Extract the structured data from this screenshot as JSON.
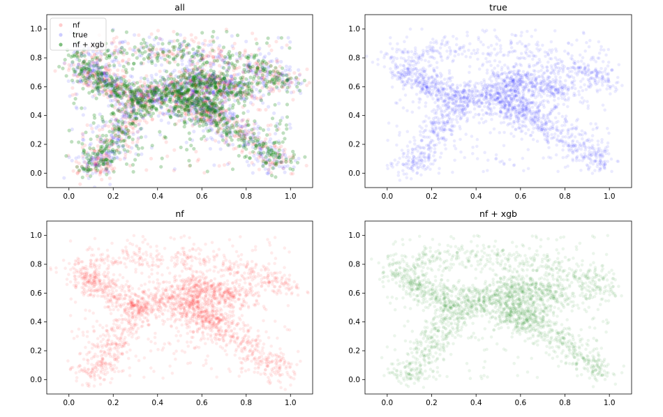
{
  "chart_data": [
    {
      "type": "scatter",
      "title": "all",
      "xlim": [
        -0.1,
        1.1
      ],
      "ylim": [
        -0.1,
        1.1
      ],
      "xticks": [
        "0.0",
        "0.2",
        "0.4",
        "0.6",
        "0.8",
        "1.0"
      ],
      "yticks": [
        "0.0",
        "0.2",
        "0.4",
        "0.6",
        "0.8",
        "1.0"
      ],
      "legend": {
        "placement": "top-left",
        "entries": [
          "nf",
          "true",
          "nf + xgb"
        ]
      },
      "series": [
        {
          "name": "nf",
          "color": "#ff0000",
          "marker": "circle",
          "alpha": 0.1
        },
        {
          "name": "true",
          "color": "#0000ff",
          "marker": "circle",
          "alpha": 0.1
        },
        {
          "name": "nf + xgb",
          "color": "#008000",
          "marker": "circle",
          "alpha": 0.25
        }
      ]
    },
    {
      "type": "scatter",
      "title": "true",
      "xlim": [
        -0.1,
        1.1
      ],
      "ylim": [
        -0.1,
        1.1
      ],
      "xticks": [
        "0.0",
        "0.2",
        "0.4",
        "0.6",
        "0.8",
        "1.0"
      ],
      "yticks": [
        "0.0",
        "0.2",
        "0.4",
        "0.6",
        "0.8",
        "1.0"
      ],
      "series": [
        {
          "color": "#0000ff",
          "marker": "circle",
          "alpha": 0.08
        }
      ]
    },
    {
      "type": "scatter",
      "title": "nf",
      "xlim": [
        -0.1,
        1.1
      ],
      "ylim": [
        -0.1,
        1.1
      ],
      "xticks": [
        "0.0",
        "0.2",
        "0.4",
        "0.6",
        "0.8",
        "1.0"
      ],
      "yticks": [
        "0.0",
        "0.2",
        "0.4",
        "0.6",
        "0.8",
        "1.0"
      ],
      "series": [
        {
          "color": "#ff0000",
          "marker": "circle",
          "alpha": 0.08
        }
      ]
    },
    {
      "type": "scatter",
      "title": "nf + xgb",
      "xlim": [
        -0.1,
        1.1
      ],
      "ylim": [
        -0.1,
        1.1
      ],
      "xticks": [
        "0.0",
        "0.2",
        "0.4",
        "0.6",
        "0.8",
        "1.0"
      ],
      "yticks": [
        "0.0",
        "0.2",
        "0.4",
        "0.6",
        "0.8",
        "1.0"
      ],
      "series": [
        {
          "color": "#008000",
          "marker": "circle",
          "alpha": 0.08
        }
      ]
    }
  ]
}
